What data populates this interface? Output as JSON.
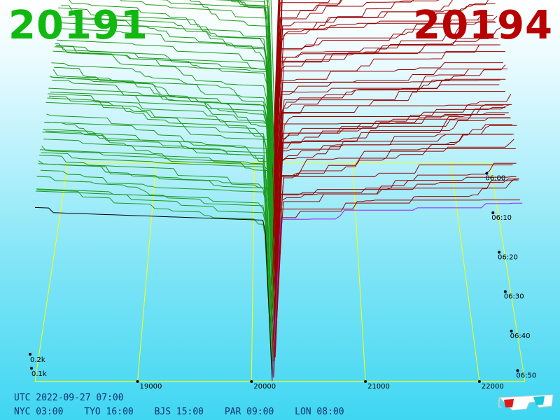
{
  "header": {
    "bid_price": "20191",
    "ask_price": "20194",
    "bid_color": "#10b810",
    "ask_color": "#b80000"
  },
  "footer": {
    "utc": "UTC 2022-09-27 07:00",
    "zones": [
      "NYC 03:00",
      "TYO 16:00",
      "BJS 15:00",
      "PAR 09:00",
      "LON 08:00"
    ]
  },
  "icons": {
    "glasses": "3d-glasses-icon"
  },
  "chart_data": {
    "type": "area",
    "x_ticks": [
      "19000",
      "20000",
      "21000",
      "22000"
    ],
    "y_ticks": [
      "0.1k",
      "0.2k"
    ],
    "time_ticks": [
      "06:00",
      "06:10",
      "06:20",
      "06:30",
      "06:40",
      "06:50"
    ],
    "price_range": [
      18100,
      22400
    ],
    "mid_price": 20192,
    "bid_color": "#1a9a1a",
    "ask_color": "#9a0000",
    "latest_bid_color": "#000000",
    "latest_ask_color": "#a020f0",
    "axis_color": "#ffff00",
    "series_count": 55
  }
}
